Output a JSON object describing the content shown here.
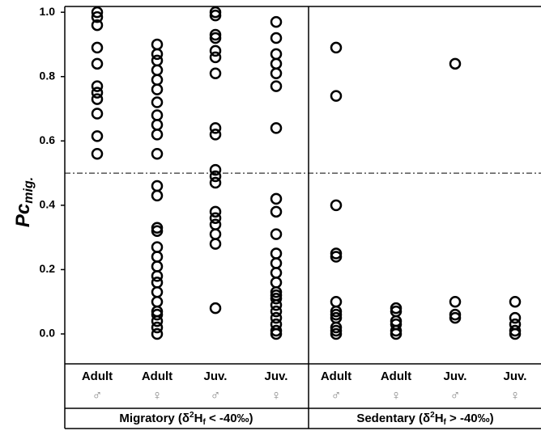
{
  "chart_data": {
    "type": "strip",
    "y_label_parts": [
      "Pc",
      "mig."
    ],
    "categories": [
      "Adult",
      "Adult",
      "Juv.",
      "Juv.",
      "Adult",
      "Adult",
      "Juv.",
      "Juv."
    ],
    "sexes": [
      "♂",
      "♀",
      "♂",
      "♀",
      "♂",
      "♀",
      "♂",
      "♀"
    ],
    "groups": [
      {
        "parts": [
          "Migratory (δ",
          "2",
          "H",
          "f",
          " < -40‰)"
        ]
      },
      {
        "parts": [
          "Sedentary (δ",
          "2",
          "H",
          "f",
          " > -40‰)"
        ]
      }
    ],
    "color": "#000000",
    "values": [
      [
        1.0,
        0.985,
        0.96,
        0.89,
        0.84,
        0.77,
        0.75,
        0.73,
        0.685,
        0.615,
        0.56
      ],
      [
        0.9,
        0.87,
        0.85,
        0.82,
        0.79,
        0.76,
        0.72,
        0.68,
        0.65,
        0.62,
        0.56,
        0.46,
        0.43,
        0.33,
        0.32,
        0.27,
        0.24,
        0.21,
        0.18,
        0.16,
        0.13,
        0.1,
        0.07,
        0.06,
        0.04,
        0.02,
        0.0
      ],
      [
        1.0,
        0.99,
        0.93,
        0.92,
        0.88,
        0.86,
        0.81,
        0.64,
        0.62,
        0.51,
        0.49,
        0.47,
        0.38,
        0.36,
        0.34,
        0.31,
        0.28,
        0.08
      ],
      [
        0.97,
        0.92,
        0.87,
        0.84,
        0.81,
        0.77,
        0.64,
        0.42,
        0.38,
        0.31,
        0.25,
        0.22,
        0.19,
        0.16,
        0.13,
        0.12,
        0.11,
        0.09,
        0.07,
        0.05,
        0.03,
        0.01,
        0.0
      ],
      [
        0.89,
        0.74,
        0.4,
        0.25,
        0.24,
        0.1,
        0.07,
        0.06,
        0.05,
        0.02,
        0.01,
        0.0
      ],
      [
        0.08,
        0.07,
        0.04,
        0.03,
        0.01,
        0.0
      ],
      [
        0.84,
        0.1,
        0.06,
        0.05
      ],
      [
        0.1,
        0.05,
        0.03,
        0.01,
        0.0
      ]
    ],
    "hline": 0.5,
    "ylim": [
      -0.093,
      1.018
    ],
    "yticks": [
      {
        "value": 0,
        "label": "0.0"
      },
      0.2,
      0.4,
      0.6,
      0.8,
      {
        "value": 1,
        "label": "1.0"
      }
    ]
  }
}
